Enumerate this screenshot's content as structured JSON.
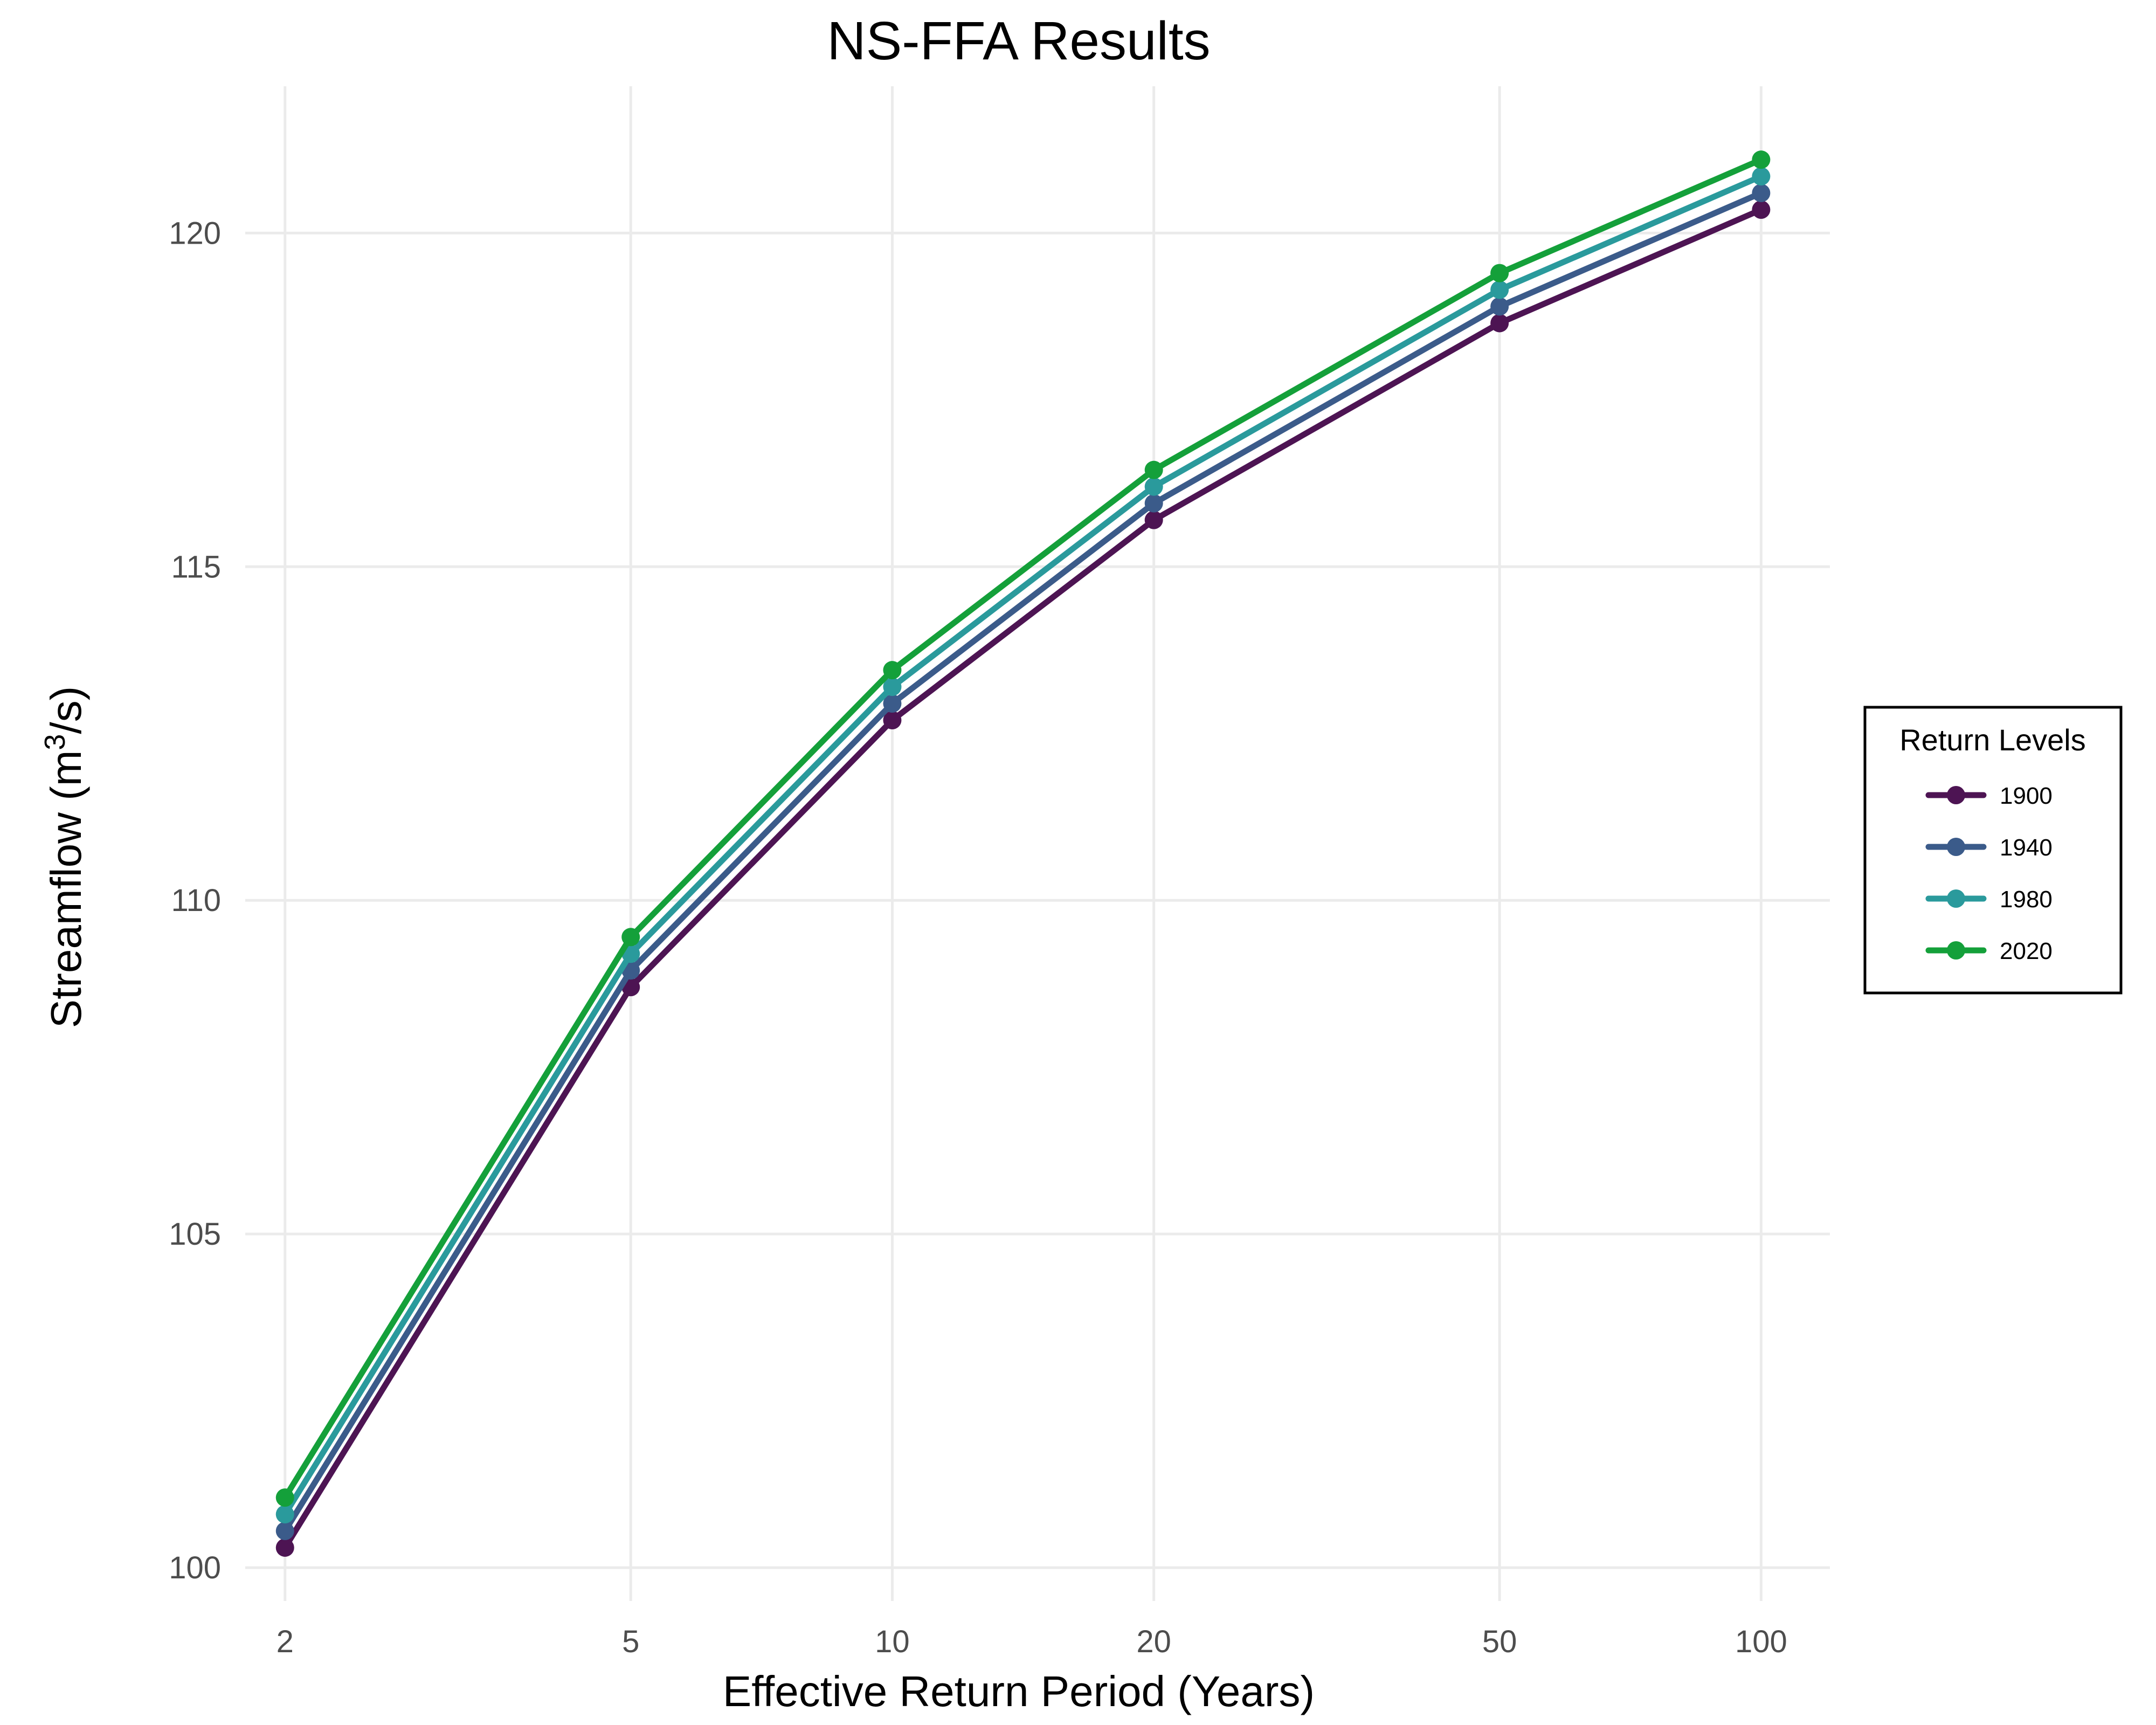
{
  "chart_data": {
    "type": "line",
    "title": "NS-FFA Results",
    "xlabel": "Effective Return Period (Years)",
    "ylabel_main": "Streamflow (m",
    "ylabel_sup": "3",
    "ylabel_tail": "/s)",
    "x_scale": "log",
    "x": [
      2,
      5,
      10,
      20,
      50,
      100
    ],
    "x_tick_labels": [
      "2",
      "5",
      "10",
      "20",
      "50",
      "100"
    ],
    "y_ticks": [
      100,
      105,
      110,
      115,
      120
    ],
    "y_tick_labels": [
      "100",
      "105",
      "110",
      "115",
      "120"
    ],
    "xlim": [
      1.8,
      120
    ],
    "ylim": [
      99.5,
      122.2
    ],
    "grid": true,
    "legend": {
      "title": "Return Levels",
      "position": "right"
    },
    "series": [
      {
        "name": "1900",
        "color": "#4d1453",
        "values": [
          100.3,
          108.7,
          112.7,
          115.7,
          118.65,
          120.35
        ]
      },
      {
        "name": "1940",
        "color": "#3b5b8a",
        "values": [
          100.55,
          108.95,
          112.95,
          115.95,
          118.9,
          120.6
        ]
      },
      {
        "name": "1980",
        "color": "#2a9a9c",
        "values": [
          100.8,
          109.2,
          113.2,
          116.2,
          119.15,
          120.85
        ]
      },
      {
        "name": "2020",
        "color": "#14a03a",
        "values": [
          101.05,
          109.45,
          113.45,
          116.45,
          119.4,
          121.1
        ]
      }
    ]
  }
}
